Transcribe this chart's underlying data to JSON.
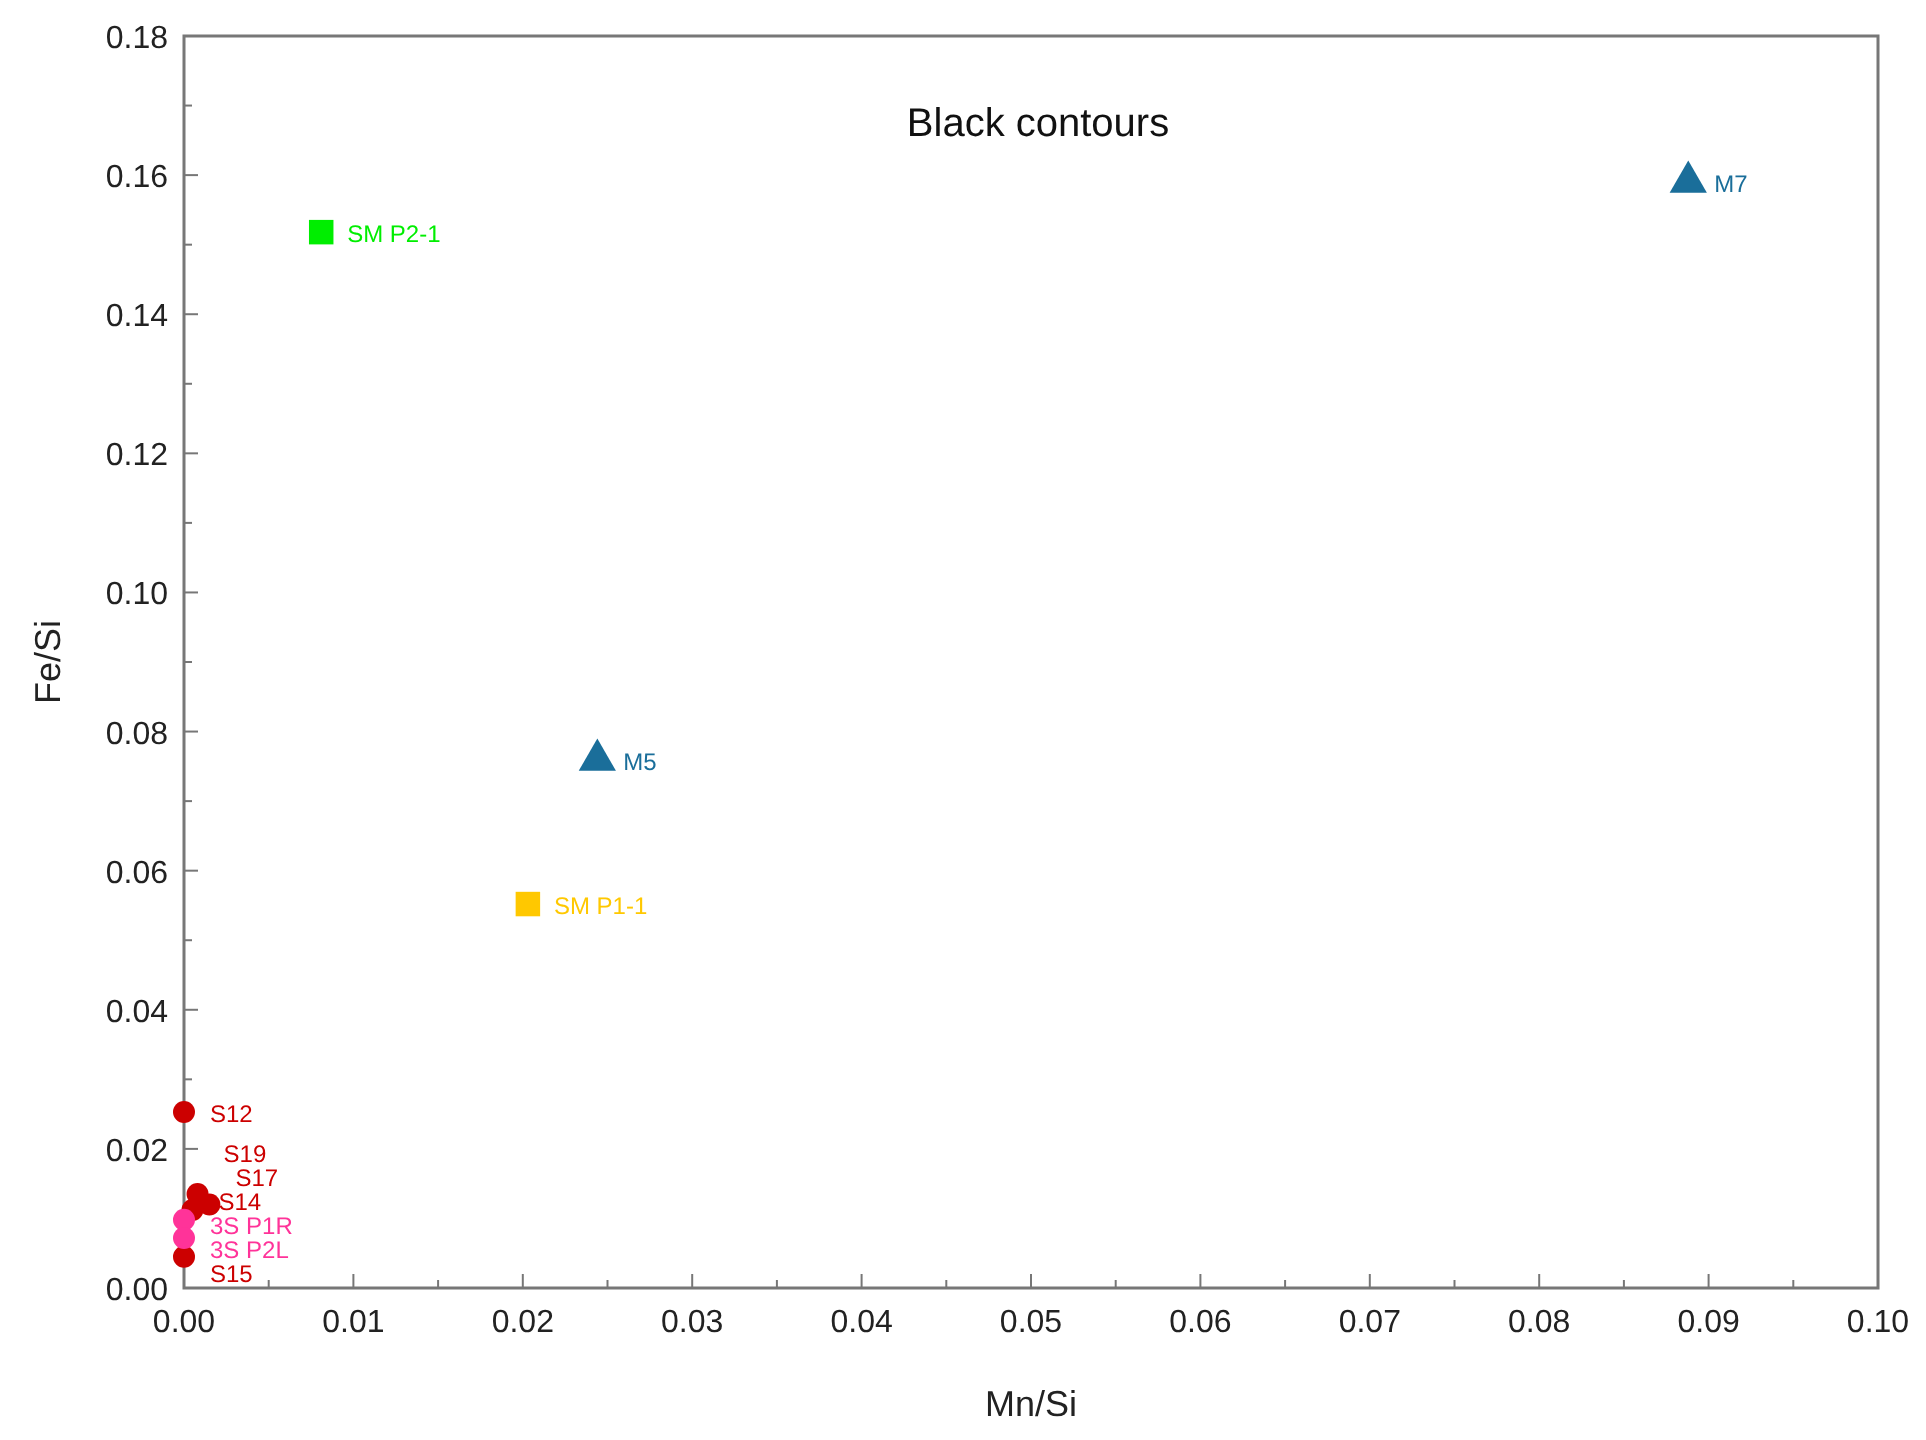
{
  "chart_data": {
    "type": "scatter",
    "title": "Black contours",
    "xlabel": "Mn/Si",
    "ylabel": "Fe/Si",
    "xlim": [
      0,
      0.1
    ],
    "ylim": [
      0,
      0.18
    ],
    "xticks": [
      {
        "value": 0,
        "label": "0.00"
      },
      {
        "value": 0.01,
        "label": "0.01"
      },
      {
        "value": 0.02,
        "label": "0.02"
      },
      {
        "value": 0.03,
        "label": "0.03"
      },
      {
        "value": 0.04,
        "label": "0.04"
      },
      {
        "value": 0.05,
        "label": "0.05"
      },
      {
        "value": 0.06,
        "label": "0.06"
      },
      {
        "value": 0.07,
        "label": "0.07"
      },
      {
        "value": 0.08,
        "label": "0.08"
      },
      {
        "value": 0.09,
        "label": "0.09"
      },
      {
        "value": 0.1,
        "label": "0.10"
      }
    ],
    "yticks": [
      {
        "value": 0,
        "label": "0.00"
      },
      {
        "value": 0.02,
        "label": "0.02"
      },
      {
        "value": 0.04,
        "label": "0.04"
      },
      {
        "value": 0.06,
        "label": "0.06"
      },
      {
        "value": 0.08,
        "label": "0.08"
      },
      {
        "value": 0.1,
        "label": "0.10"
      },
      {
        "value": 0.12,
        "label": "0.12"
      },
      {
        "value": 0.14,
        "label": "0.14"
      },
      {
        "value": 0.16,
        "label": "0.16"
      },
      {
        "value": 0.18,
        "label": "0.18"
      }
    ],
    "grid": false,
    "series": [
      {
        "name": "SM P2-1",
        "color": "#00ee00",
        "marker": "square",
        "x": [
          0.0081
        ],
        "values": [
          0.1518
        ]
      },
      {
        "name": "M7",
        "color": "#1a6e9a",
        "marker": "triangle",
        "x": [
          0.0888
        ],
        "values": [
          0.159
        ]
      },
      {
        "name": "M5",
        "color": "#1a6e9a",
        "marker": "triangle",
        "x": [
          0.0244
        ],
        "values": [
          0.0759
        ]
      },
      {
        "name": "SM P1-1",
        "color": "#ffc800",
        "marker": "square",
        "x": [
          0.0203
        ],
        "values": [
          0.0552
        ]
      },
      {
        "name": "S12",
        "color": "#cc0000",
        "marker": "circle",
        "x": [
          0
        ],
        "values": [
          0.0253
        ]
      },
      {
        "name": "S17",
        "color": "#cc0000",
        "marker": "circle",
        "x": [
          0.0015
        ],
        "values": [
          0.012
        ]
      },
      {
        "name": "S19",
        "color": "#cc0000",
        "marker": "circle",
        "x": [
          0.0008
        ],
        "values": [
          0.0135
        ]
      },
      {
        "name": "S14",
        "color": "#cc0000",
        "marker": "circle",
        "x": [
          0.0005
        ],
        "values": [
          0.0112
        ]
      },
      {
        "name": "S15",
        "color": "#cc0000",
        "marker": "circle",
        "x": [
          0
        ],
        "values": [
          0.0045
        ]
      },
      {
        "name": "3S P1R",
        "color": "#ff3399",
        "marker": "circle",
        "x": [
          0
        ],
        "values": [
          0.0098
        ]
      },
      {
        "name": "3S P2L",
        "color": "#ff3399",
        "marker": "circle",
        "x": [
          0
        ],
        "values": [
          0.0072
        ]
      }
    ]
  }
}
